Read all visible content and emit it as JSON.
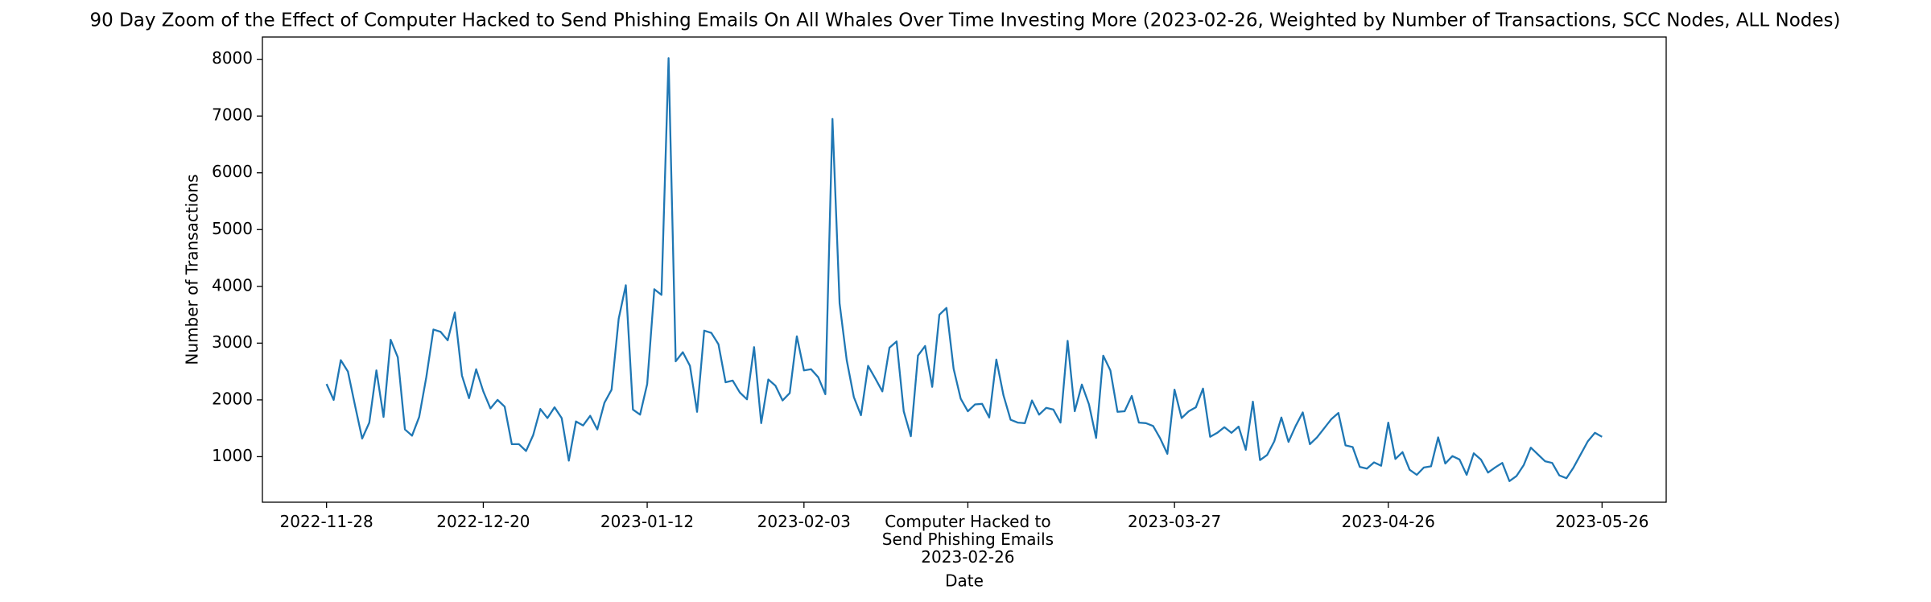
{
  "chart_data": {
    "type": "line",
    "title": "90 Day Zoom of the Effect of Computer Hacked to Send Phishing Emails On All Whales Over Time Investing More (2023-02-26, Weighted by Number of Transactions, SCC Nodes, ALL Nodes)",
    "xlabel": "Date",
    "ylabel": "Number of Transactions",
    "color": "#1f77b4",
    "grid": false,
    "x": [
      "2022-11-28",
      "2022-11-29",
      "2022-11-30",
      "2022-12-01",
      "2022-12-02",
      "2022-12-03",
      "2022-12-04",
      "2022-12-05",
      "2022-12-06",
      "2022-12-07",
      "2022-12-08",
      "2022-12-09",
      "2022-12-10",
      "2022-12-11",
      "2022-12-12",
      "2022-12-13",
      "2022-12-14",
      "2022-12-15",
      "2022-12-16",
      "2022-12-17",
      "2022-12-18",
      "2022-12-19",
      "2022-12-20",
      "2022-12-21",
      "2022-12-22",
      "2022-12-23",
      "2022-12-24",
      "2022-12-25",
      "2022-12-26",
      "2022-12-27",
      "2022-12-28",
      "2022-12-29",
      "2022-12-30",
      "2022-12-31",
      "2023-01-01",
      "2023-01-02",
      "2023-01-03",
      "2023-01-04",
      "2023-01-05",
      "2023-01-06",
      "2023-01-07",
      "2023-01-08",
      "2023-01-09",
      "2023-01-10",
      "2023-01-11",
      "2023-01-12",
      "2023-01-13",
      "2023-01-14",
      "2023-01-15",
      "2023-01-16",
      "2023-01-17",
      "2023-01-18",
      "2023-01-19",
      "2023-01-20",
      "2023-01-21",
      "2023-01-22",
      "2023-01-23",
      "2023-01-24",
      "2023-01-25",
      "2023-01-26",
      "2023-01-27",
      "2023-01-28",
      "2023-01-29",
      "2023-01-30",
      "2023-01-31",
      "2023-02-01",
      "2023-02-02",
      "2023-02-03",
      "2023-02-04",
      "2023-02-05",
      "2023-02-06",
      "2023-02-07",
      "2023-02-08",
      "2023-02-09",
      "2023-02-10",
      "2023-02-11",
      "2023-02-12",
      "2023-02-13",
      "2023-02-14",
      "2023-02-15",
      "2023-02-16",
      "2023-02-17",
      "2023-02-18",
      "2023-02-19",
      "2023-02-20",
      "2023-02-21",
      "2023-02-22",
      "2023-02-23",
      "2023-02-24",
      "2023-02-25",
      "2023-02-26",
      "2023-02-27",
      "2023-02-28",
      "2023-03-01",
      "2023-03-02",
      "2023-03-03",
      "2023-03-04",
      "2023-03-05",
      "2023-03-06",
      "2023-03-07",
      "2023-03-08",
      "2023-03-09",
      "2023-03-10",
      "2023-03-11",
      "2023-03-12",
      "2023-03-13",
      "2023-03-14",
      "2023-03-15",
      "2023-03-16",
      "2023-03-17",
      "2023-03-18",
      "2023-03-19",
      "2023-03-20",
      "2023-03-21",
      "2023-03-22",
      "2023-03-23",
      "2023-03-24",
      "2023-03-25",
      "2023-03-26",
      "2023-03-27",
      "2023-03-28",
      "2023-03-29",
      "2023-03-30",
      "2023-03-31",
      "2023-04-01",
      "2023-04-02",
      "2023-04-03",
      "2023-04-04",
      "2023-04-05",
      "2023-04-06",
      "2023-04-07",
      "2023-04-08",
      "2023-04-09",
      "2023-04-10",
      "2023-04-11",
      "2023-04-12",
      "2023-04-13",
      "2023-04-14",
      "2023-04-15",
      "2023-04-16",
      "2023-04-17",
      "2023-04-18",
      "2023-04-19",
      "2023-04-20",
      "2023-04-21",
      "2023-04-22",
      "2023-04-23",
      "2023-04-24",
      "2023-04-25",
      "2023-04-26",
      "2023-04-27",
      "2023-04-28",
      "2023-04-29",
      "2023-04-30",
      "2023-05-01",
      "2023-05-02",
      "2023-05-03",
      "2023-05-04",
      "2023-05-05",
      "2023-05-06",
      "2023-05-07",
      "2023-05-08",
      "2023-05-09",
      "2023-05-10",
      "2023-05-11",
      "2023-05-12",
      "2023-05-13",
      "2023-05-14",
      "2023-05-15",
      "2023-05-16",
      "2023-05-17",
      "2023-05-18",
      "2023-05-19",
      "2023-05-20",
      "2023-05-21",
      "2023-05-22",
      "2023-05-23",
      "2023-05-24",
      "2023-05-25",
      "2023-05-26"
    ],
    "values": [
      2280,
      2000,
      2700,
      2500,
      1900,
      1320,
      1600,
      2520,
      1700,
      3060,
      2750,
      1480,
      1370,
      1700,
      2400,
      3240,
      3200,
      3050,
      3540,
      2430,
      2030,
      2540,
      2150,
      1850,
      2000,
      1880,
      1220,
      1220,
      1100,
      1380,
      1840,
      1680,
      1870,
      1680,
      930,
      1620,
      1550,
      1720,
      1480,
      1950,
      2180,
      3430,
      4020,
      1830,
      1740,
      2280,
      3950,
      3850,
      8020,
      2680,
      2840,
      2600,
      1790,
      3220,
      3180,
      2980,
      2310,
      2340,
      2130,
      2010,
      2930,
      1590,
      2360,
      2250,
      1990,
      2120,
      3120,
      2520,
      2540,
      2400,
      2100,
      6950,
      3700,
      2700,
      2050,
      1730,
      2600,
      2380,
      2150,
      2920,
      3030,
      1800,
      1360,
      2780,
      2950,
      2230,
      3500,
      3620,
      2550,
      2020,
      1800,
      1920,
      1930,
      1690,
      2710,
      2080,
      1650,
      1600,
      1590,
      1990,
      1740,
      1860,
      1830,
      1600,
      3040,
      1800,
      2270,
      1920,
      1330,
      2780,
      2520,
      1790,
      1800,
      2070,
      1600,
      1590,
      1540,
      1320,
      1050,
      2180,
      1680,
      1800,
      1870,
      2200,
      1350,
      1420,
      1520,
      1420,
      1530,
      1120,
      1970,
      940,
      1030,
      1270,
      1690,
      1260,
      1540,
      1780,
      1220,
      1340,
      1500,
      1660,
      1770,
      1200,
      1170,
      820,
      790,
      900,
      840,
      1600,
      960,
      1080,
      770,
      680,
      810,
      830,
      1340,
      880,
      1010,
      950,
      680,
      1060,
      950,
      720,
      810,
      890,
      570,
      660,
      850,
      1160,
      1040,
      920,
      890,
      670,
      620,
      810,
      1040,
      1270,
      1420,
      1350
    ],
    "xlim": [
      "2022-11-19",
      "2023-06-04"
    ],
    "xticks": [
      "2022-11-28",
      "2022-12-20",
      "2023-01-12",
      "2023-02-03",
      {
        "value": "2023-02-26",
        "label": "Computer Hacked to\nSend Phishing Emails\n2023-02-26"
      },
      "2023-03-27",
      "2023-04-26",
      "2023-05-26"
    ],
    "ylim": [
      198,
      8392
    ],
    "yticks": [
      1000,
      2000,
      3000,
      4000,
      5000,
      6000,
      7000,
      8000
    ]
  }
}
